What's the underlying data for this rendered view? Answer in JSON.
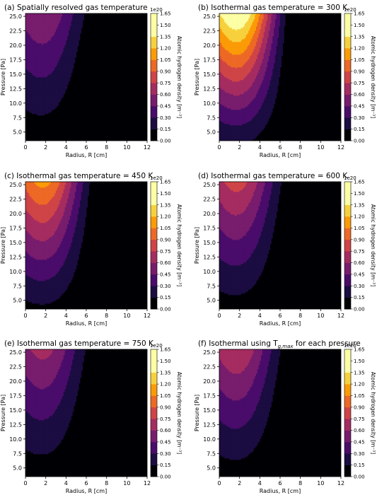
{
  "figure": {
    "colorbar": {
      "label": "Atomic hydrogen density [m⁻³]",
      "scale_label": "1e20",
      "ticks": [
        "0.00",
        "0.15",
        "0.30",
        "0.45",
        "0.60",
        "0.75",
        "0.90",
        "1.05",
        "1.20",
        "1.35",
        "1.50",
        "1.65"
      ],
      "levels": [
        0,
        0.15,
        0.3,
        0.45,
        0.6,
        0.75,
        0.9,
        1.05,
        1.2,
        1.35,
        1.5,
        1.65
      ],
      "colormap": [
        "#000004",
        "#1b0c41",
        "#4a0c6b",
        "#781c6d",
        "#a52c60",
        "#cf4446",
        "#ed6925",
        "#fb9b06",
        "#f7d13d",
        "#fcffa4"
      ]
    },
    "x_axis": {
      "label": "Radius, R [cm]",
      "ticks": [
        "0",
        "2",
        "4",
        "6",
        "8",
        "10",
        "12"
      ]
    },
    "y_axis": {
      "label": "Pressure [Pa]",
      "ticks": [
        "5.0",
        "7.5",
        "10.0",
        "12.5",
        "15.0",
        "17.5",
        "20.0",
        "22.5",
        "25.0"
      ]
    }
  },
  "chart_data": [
    {
      "type": "heatmap",
      "title": "(a)  Spatially resolved gas temperature",
      "xlabel": "Radius, R [cm]",
      "ylabel": "Pressure [Pa]",
      "xlim": [
        0,
        12
      ],
      "ylim": [
        3.5,
        25.5
      ],
      "zlim": [
        0,
        1.65
      ],
      "peak": {
        "r": 2.5,
        "p": 25,
        "value": 0.62
      },
      "edge_radius_cm": [
        5.6,
        7.0
      ]
    },
    {
      "type": "heatmap",
      "title": "(b)  Isothermal gas temperature = 300 K",
      "xlabel": "Radius, R [cm]",
      "ylabel": "Pressure [Pa]",
      "xlim": [
        0,
        12
      ],
      "ylim": [
        3.5,
        25.5
      ],
      "zlim": [
        0,
        1.65
      ],
      "peak": {
        "r": 2.5,
        "p": 25,
        "value": 1.62
      },
      "edge_radius_cm": [
        6.6,
        7.0
      ]
    },
    {
      "type": "heatmap",
      "title": "(c)  Isothermal gas temperature = 450 K",
      "xlabel": "Radius, R [cm]",
      "ylabel": "Pressure [Pa]",
      "xlim": [
        0,
        12
      ],
      "ylim": [
        3.5,
        25.5
      ],
      "zlim": [
        0,
        1.65
      ],
      "peak": {
        "r": 2.5,
        "p": 25,
        "value": 1.15
      },
      "edge_radius_cm": [
        6.3,
        7.0
      ]
    },
    {
      "type": "heatmap",
      "title": "(d)  Isothermal gas temperature = 600 K",
      "xlabel": "Radius, R [cm]",
      "ylabel": "Pressure [Pa]",
      "xlim": [
        0,
        12
      ],
      "ylim": [
        3.5,
        25.5
      ],
      "zlim": [
        0,
        1.65
      ],
      "peak": {
        "r": 2.5,
        "p": 25,
        "value": 0.85
      },
      "edge_radius_cm": [
        6.0,
        7.0
      ]
    },
    {
      "type": "heatmap",
      "title": "(e)  Isothermal gas temperature = 750 K",
      "xlabel": "Radius, R [cm]",
      "ylabel": "Pressure [Pa]",
      "xlim": [
        0,
        12
      ],
      "ylim": [
        3.5,
        25.5
      ],
      "zlim": [
        0,
        1.65
      ],
      "peak": {
        "r": 2.5,
        "p": 25,
        "value": 0.68
      },
      "edge_radius_cm": [
        5.8,
        7.0
      ]
    },
    {
      "type": "heatmap",
      "title": "(f)  Isothermal using T",
      "title_sub": "g,max",
      "title_after": " for each pressure",
      "xlabel": "Radius, R [cm]",
      "ylabel": "Pressure [Pa]",
      "xlim": [
        0,
        12
      ],
      "ylim": [
        3.5,
        25.5
      ],
      "zlim": [
        0,
        1.65
      ],
      "peak": {
        "r": 2.5,
        "p": 25,
        "value": 0.78
      },
      "edge_radius_cm": [
        6.0,
        7.0
      ]
    }
  ]
}
